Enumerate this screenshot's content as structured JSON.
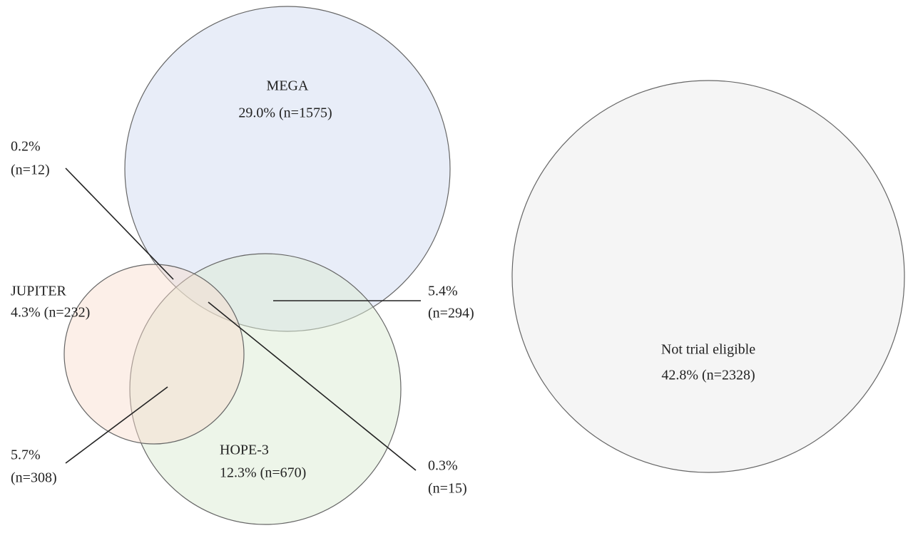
{
  "sets": [
    {
      "name": "MEGA",
      "label": "29.0% (n=1575)"
    },
    {
      "name": "JUPITER",
      "label": "4.3% (n=232)"
    },
    {
      "name": "HOPE-3",
      "label": "12.3% (n=670)"
    },
    {
      "name": "Not trial eligible",
      "label": "42.8% (n=2328)"
    }
  ],
  "intersections": [
    {
      "percent": "0.2%",
      "count": "(n=12)"
    },
    {
      "percent": "5.4%",
      "count": "(n=294)"
    },
    {
      "percent": "5.7%",
      "count": "(n=308)"
    },
    {
      "percent": "0.3%",
      "count": "(n=15)"
    }
  ]
}
